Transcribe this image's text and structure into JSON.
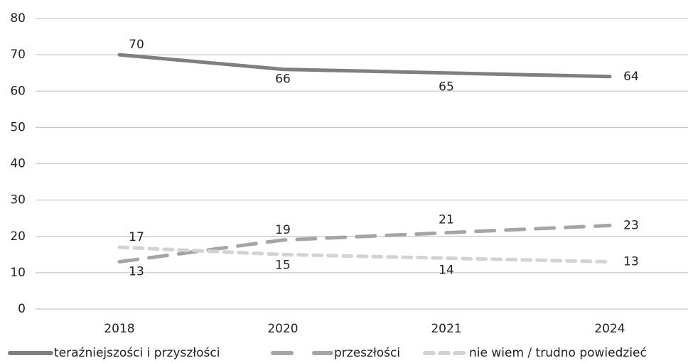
{
  "chart_data": {
    "type": "line",
    "categories": [
      "2018",
      "2020",
      "2021",
      "2024"
    ],
    "series": [
      {
        "name": "teraźniejszości i przyszłości",
        "color": "#7f7f7f",
        "dash": "solid",
        "values": [
          70,
          66,
          65,
          64
        ]
      },
      {
        "name": "przeszłości",
        "color": "#a5a5a5",
        "dash": "dashed",
        "values": [
          13,
          19,
          21,
          23
        ]
      },
      {
        "name": "nie wiem / trudno powiedzieć",
        "color": "#d3d3d3",
        "dash": "dotted",
        "values": [
          17,
          15,
          14,
          13
        ]
      }
    ],
    "ylim": [
      0,
      80
    ],
    "yticks": [
      0,
      10,
      20,
      30,
      40,
      50,
      60,
      70,
      80
    ],
    "grid": true,
    "legend": "bottom"
  }
}
